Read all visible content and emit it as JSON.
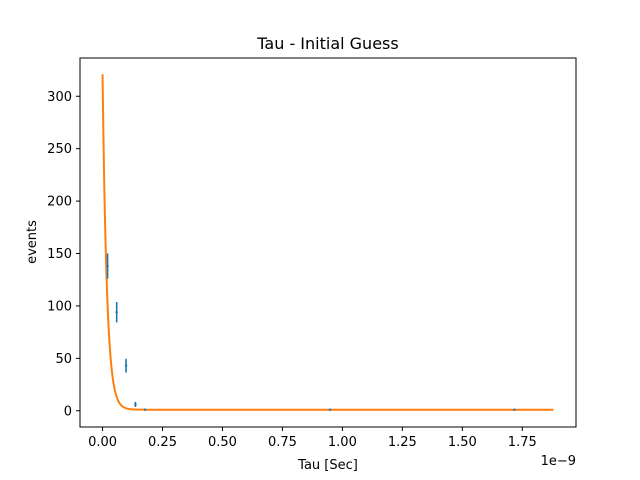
{
  "chart_data": {
    "type": "scatter",
    "title": "Tau - Initial Guess",
    "xlabel": "Tau [Sec]",
    "ylabel": "events",
    "x_offset_label": "1e−9",
    "xlim": [
      -0.094,
      1.974
    ],
    "ylim": [
      -15.5,
      336.5
    ],
    "grid": false,
    "x_ticks": [
      0.0,
      0.25,
      0.5,
      0.75,
      1.0,
      1.25,
      1.5,
      1.75
    ],
    "x_tick_labels": [
      "0.00",
      "0.25",
      "0.50",
      "0.75",
      "1.00",
      "1.25",
      "1.50",
      "1.75"
    ],
    "y_ticks": [
      0,
      50,
      100,
      150,
      200,
      250,
      300
    ],
    "y_tick_labels": [
      "0",
      "50",
      "100",
      "150",
      "200",
      "250",
      "300"
    ],
    "colors": {
      "data": "#1f77b4",
      "fit": "#ff7f0e"
    },
    "series": [
      {
        "kind": "errorbar",
        "x": [
          0.021,
          0.059,
          0.098,
          0.137,
          0.177,
          0.948,
          1.717
        ],
        "y": [
          138,
          94,
          43,
          6,
          1,
          1,
          1
        ],
        "yerr": [
          12,
          9.7,
          6.6,
          2.4,
          1,
          1,
          1
        ],
        "xerr": [
          0.005,
          0.005,
          0.005,
          0.005,
          0.005,
          0.005,
          0.005
        ]
      },
      {
        "kind": "line",
        "function": "exponential_decay",
        "amplitude": 320,
        "tau": 0.018,
        "offset": 1,
        "x_range": [
          0.0,
          1.88
        ]
      }
    ]
  }
}
